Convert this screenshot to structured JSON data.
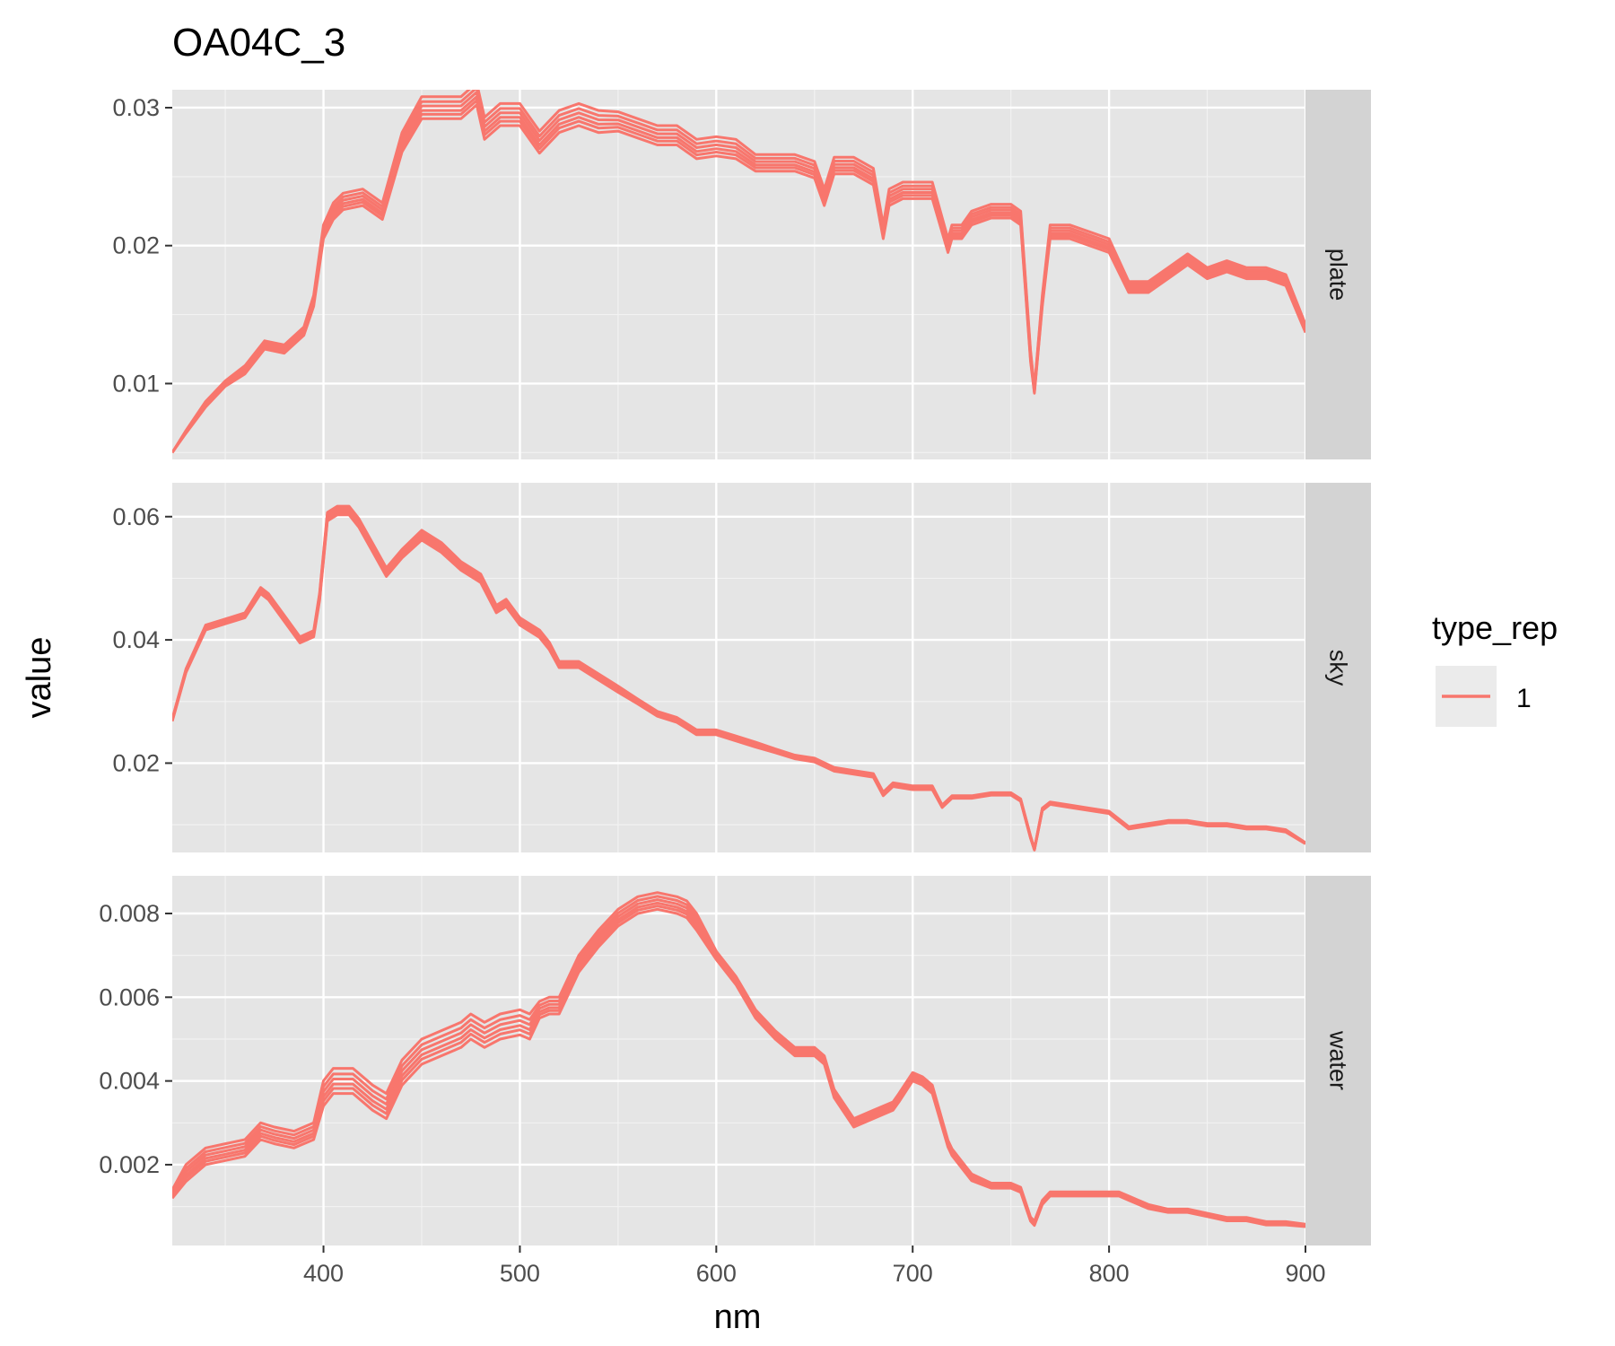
{
  "chart_data": {
    "type": "line",
    "title": "OA04C_3",
    "xlabel": "nm",
    "ylabel": "value",
    "xlim": [
      323,
      900
    ],
    "x_ticks": [
      400,
      500,
      600,
      700,
      800,
      900
    ],
    "x_tick_labels": [
      "400",
      "500",
      "600",
      "700",
      "800",
      "900"
    ],
    "grid": true,
    "facet_direction": "rows",
    "legend": {
      "title": "type_rep",
      "position": "right",
      "entries": [
        {
          "label": "1",
          "color": "#F8766D"
        }
      ]
    },
    "series_color": "#F8766D",
    "panel_background": "#E5E5E5",
    "strip_background": "#D3D3D3",
    "panels": [
      {
        "strip": "plate",
        "ylim": [
          0.0045,
          0.0313
        ],
        "y_ticks": [
          0.01,
          0.02,
          0.03
        ],
        "y_tick_labels": [
          "0.01",
          "0.02",
          "0.03"
        ],
        "x": [
          323,
          330,
          340,
          350,
          360,
          370,
          380,
          390,
          395,
          400,
          405,
          410,
          420,
          430,
          440,
          450,
          460,
          470,
          478,
          482,
          490,
          500,
          510,
          520,
          530,
          540,
          550,
          560,
          570,
          580,
          590,
          600,
          610,
          620,
          630,
          640,
          650,
          655,
          660,
          670,
          680,
          685,
          688,
          695,
          700,
          710,
          718,
          720,
          725,
          730,
          740,
          750,
          755,
          760,
          762,
          766,
          770,
          780,
          790,
          800,
          810,
          820,
          830,
          840,
          850,
          860,
          870,
          880,
          890,
          900
        ],
        "base": [
          0.005,
          0.0065,
          0.0085,
          0.01,
          0.011,
          0.0128,
          0.0125,
          0.0138,
          0.016,
          0.021,
          0.0225,
          0.0232,
          0.0235,
          0.0225,
          0.0275,
          0.03,
          0.03,
          0.03,
          0.031,
          0.0285,
          0.0295,
          0.0295,
          0.0275,
          0.029,
          0.0295,
          0.029,
          0.029,
          0.0285,
          0.028,
          0.028,
          0.027,
          0.0272,
          0.027,
          0.026,
          0.026,
          0.026,
          0.0255,
          0.0235,
          0.0258,
          0.0258,
          0.025,
          0.021,
          0.0235,
          0.024,
          0.024,
          0.024,
          0.02,
          0.021,
          0.021,
          0.022,
          0.0225,
          0.0225,
          0.022,
          0.012,
          0.0095,
          0.016,
          0.021,
          0.021,
          0.0205,
          0.02,
          0.017,
          0.017,
          0.018,
          0.019,
          0.018,
          0.0185,
          0.018,
          0.018,
          0.0175,
          0.014
        ],
        "spread": [
          0.0,
          0.0001,
          0.0002,
          0.0002,
          0.0003,
          0.0003,
          0.0003,
          0.0003,
          0.0004,
          0.0005,
          0.0006,
          0.0006,
          0.0006,
          0.0006,
          0.0007,
          0.0008,
          0.0008,
          0.0008,
          0.0008,
          0.0008,
          0.0008,
          0.0008,
          0.0008,
          0.0008,
          0.0008,
          0.0008,
          0.0007,
          0.0007,
          0.0007,
          0.0007,
          0.0007,
          0.0007,
          0.0007,
          0.0006,
          0.0006,
          0.0006,
          0.0006,
          0.0006,
          0.0006,
          0.0006,
          0.0006,
          0.0005,
          0.0006,
          0.0006,
          0.0006,
          0.0006,
          0.0005,
          0.0005,
          0.0005,
          0.0005,
          0.0005,
          0.0005,
          0.0005,
          0.0004,
          0.0002,
          0.0004,
          0.0005,
          0.0005,
          0.0005,
          0.0005,
          0.0004,
          0.0004,
          0.0004,
          0.0004,
          0.0004,
          0.0004,
          0.0004,
          0.0004,
          0.0004,
          0.0003
        ]
      },
      {
        "strip": "sky",
        "ylim": [
          0.0055,
          0.0655
        ],
        "y_ticks": [
          0.02,
          0.04,
          0.06
        ],
        "y_tick_labels": [
          "0.02",
          "0.04",
          "0.06"
        ],
        "x": [
          323,
          330,
          340,
          350,
          360,
          368,
          372,
          380,
          388,
          395,
          398,
          402,
          407,
          413,
          418,
          425,
          432,
          440,
          450,
          460,
          470,
          480,
          488,
          493,
          500,
          510,
          515,
          520,
          530,
          540,
          550,
          560,
          570,
          580,
          590,
          600,
          610,
          620,
          630,
          640,
          650,
          660,
          670,
          680,
          685,
          690,
          700,
          710,
          715,
          720,
          730,
          740,
          750,
          755,
          760,
          762,
          766,
          770,
          780,
          790,
          800,
          810,
          820,
          830,
          840,
          850,
          860,
          870,
          880,
          890,
          900
        ],
        "base": [
          0.027,
          0.035,
          0.042,
          0.043,
          0.044,
          0.048,
          0.047,
          0.0435,
          0.04,
          0.041,
          0.047,
          0.06,
          0.061,
          0.061,
          0.059,
          0.055,
          0.051,
          0.054,
          0.057,
          0.055,
          0.052,
          0.05,
          0.045,
          0.046,
          0.043,
          0.041,
          0.039,
          0.036,
          0.036,
          0.034,
          0.032,
          0.03,
          0.028,
          0.027,
          0.025,
          0.025,
          0.024,
          0.023,
          0.022,
          0.021,
          0.0205,
          0.019,
          0.0185,
          0.018,
          0.015,
          0.0165,
          0.016,
          0.016,
          0.013,
          0.0145,
          0.0145,
          0.015,
          0.015,
          0.014,
          0.008,
          0.006,
          0.0125,
          0.0135,
          0.013,
          0.0125,
          0.012,
          0.0095,
          0.01,
          0.0105,
          0.0105,
          0.01,
          0.01,
          0.0095,
          0.0095,
          0.009,
          0.007
        ],
        "spread": [
          0.0002,
          0.0003,
          0.0004,
          0.0004,
          0.0004,
          0.0005,
          0.0005,
          0.0005,
          0.0005,
          0.0005,
          0.0006,
          0.0007,
          0.0007,
          0.0007,
          0.0007,
          0.0007,
          0.0007,
          0.0007,
          0.0008,
          0.0008,
          0.0007,
          0.0007,
          0.0006,
          0.0006,
          0.0006,
          0.0006,
          0.0006,
          0.0005,
          0.0005,
          0.0005,
          0.0005,
          0.0004,
          0.0004,
          0.0004,
          0.0004,
          0.0004,
          0.0004,
          0.0004,
          0.0003,
          0.0003,
          0.0003,
          0.0003,
          0.0003,
          0.0003,
          0.0003,
          0.0003,
          0.0003,
          0.0003,
          0.0002,
          0.0002,
          0.0002,
          0.0002,
          0.0002,
          0.0002,
          0.0002,
          0.0001,
          0.0002,
          0.0002,
          0.0002,
          0.0002,
          0.0002,
          0.0002,
          0.0002,
          0.0002,
          0.0002,
          0.0002,
          0.0002,
          0.0002,
          0.0002,
          0.0002,
          0.0001
        ]
      },
      {
        "strip": "water",
        "ylim": [
          7e-05,
          0.0089
        ],
        "y_ticks": [
          0.002,
          0.004,
          0.006,
          0.008
        ],
        "y_tick_labels": [
          "0.002",
          "0.004",
          "0.006",
          "0.008"
        ],
        "x": [
          323,
          330,
          340,
          350,
          360,
          368,
          375,
          385,
          395,
          400,
          405,
          415,
          425,
          432,
          440,
          450,
          460,
          470,
          475,
          482,
          490,
          500,
          505,
          510,
          515,
          520,
          530,
          540,
          550,
          560,
          570,
          580,
          585,
          590,
          600,
          610,
          620,
          630,
          640,
          650,
          655,
          660,
          670,
          680,
          690,
          693,
          700,
          705,
          710,
          718,
          720,
          725,
          730,
          740,
          750,
          755,
          760,
          762,
          766,
          770,
          780,
          790,
          800,
          805,
          810,
          820,
          830,
          840,
          850,
          860,
          870,
          880,
          890,
          900
        ],
        "base": [
          0.0013,
          0.0018,
          0.0022,
          0.0023,
          0.0024,
          0.0028,
          0.0027,
          0.0026,
          0.0028,
          0.0037,
          0.004,
          0.004,
          0.0036,
          0.0034,
          0.0042,
          0.0047,
          0.0049,
          0.0051,
          0.0053,
          0.0051,
          0.0053,
          0.0054,
          0.0053,
          0.0057,
          0.0058,
          0.0058,
          0.0068,
          0.0074,
          0.0079,
          0.0082,
          0.0083,
          0.0082,
          0.0081,
          0.0078,
          0.007,
          0.0064,
          0.0056,
          0.0051,
          0.0047,
          0.0047,
          0.0045,
          0.0037,
          0.003,
          0.0032,
          0.0034,
          0.0036,
          0.0041,
          0.004,
          0.0038,
          0.0025,
          0.0023,
          0.002,
          0.0017,
          0.0015,
          0.0015,
          0.0014,
          0.0007,
          0.0006,
          0.0011,
          0.0013,
          0.0013,
          0.0013,
          0.0013,
          0.0013,
          0.0012,
          0.001,
          0.0009,
          0.0009,
          0.0008,
          0.0007,
          0.0007,
          0.0006,
          0.0006,
          0.00055
        ],
        "spread": [
          0.0001,
          0.0002,
          0.0002,
          0.0002,
          0.0002,
          0.0002,
          0.0002,
          0.0002,
          0.0002,
          0.0003,
          0.0003,
          0.0003,
          0.0003,
          0.0003,
          0.0003,
          0.0003,
          0.0003,
          0.0003,
          0.0003,
          0.0003,
          0.0003,
          0.0003,
          0.0003,
          0.0002,
          0.0002,
          0.0002,
          0.0002,
          0.0002,
          0.0002,
          0.0002,
          0.0002,
          0.0002,
          0.0002,
          0.0002,
          0.0001,
          0.0001,
          0.0001,
          0.0001,
          0.0001,
          0.0001,
          0.0001,
          0.0001,
          0.0001,
          0.0001,
          0.0001,
          0.0001,
          0.0001,
          0.0001,
          0.0001,
          8e-05,
          8e-05,
          8e-05,
          8e-05,
          6e-05,
          6e-05,
          6e-05,
          5e-05,
          5e-05,
          5e-05,
          5e-05,
          5e-05,
          5e-05,
          5e-05,
          5e-05,
          5e-05,
          5e-05,
          4e-05,
          4e-05,
          4e-05,
          4e-05,
          4e-05,
          4e-05,
          4e-05,
          3e-05
        ]
      }
    ]
  }
}
